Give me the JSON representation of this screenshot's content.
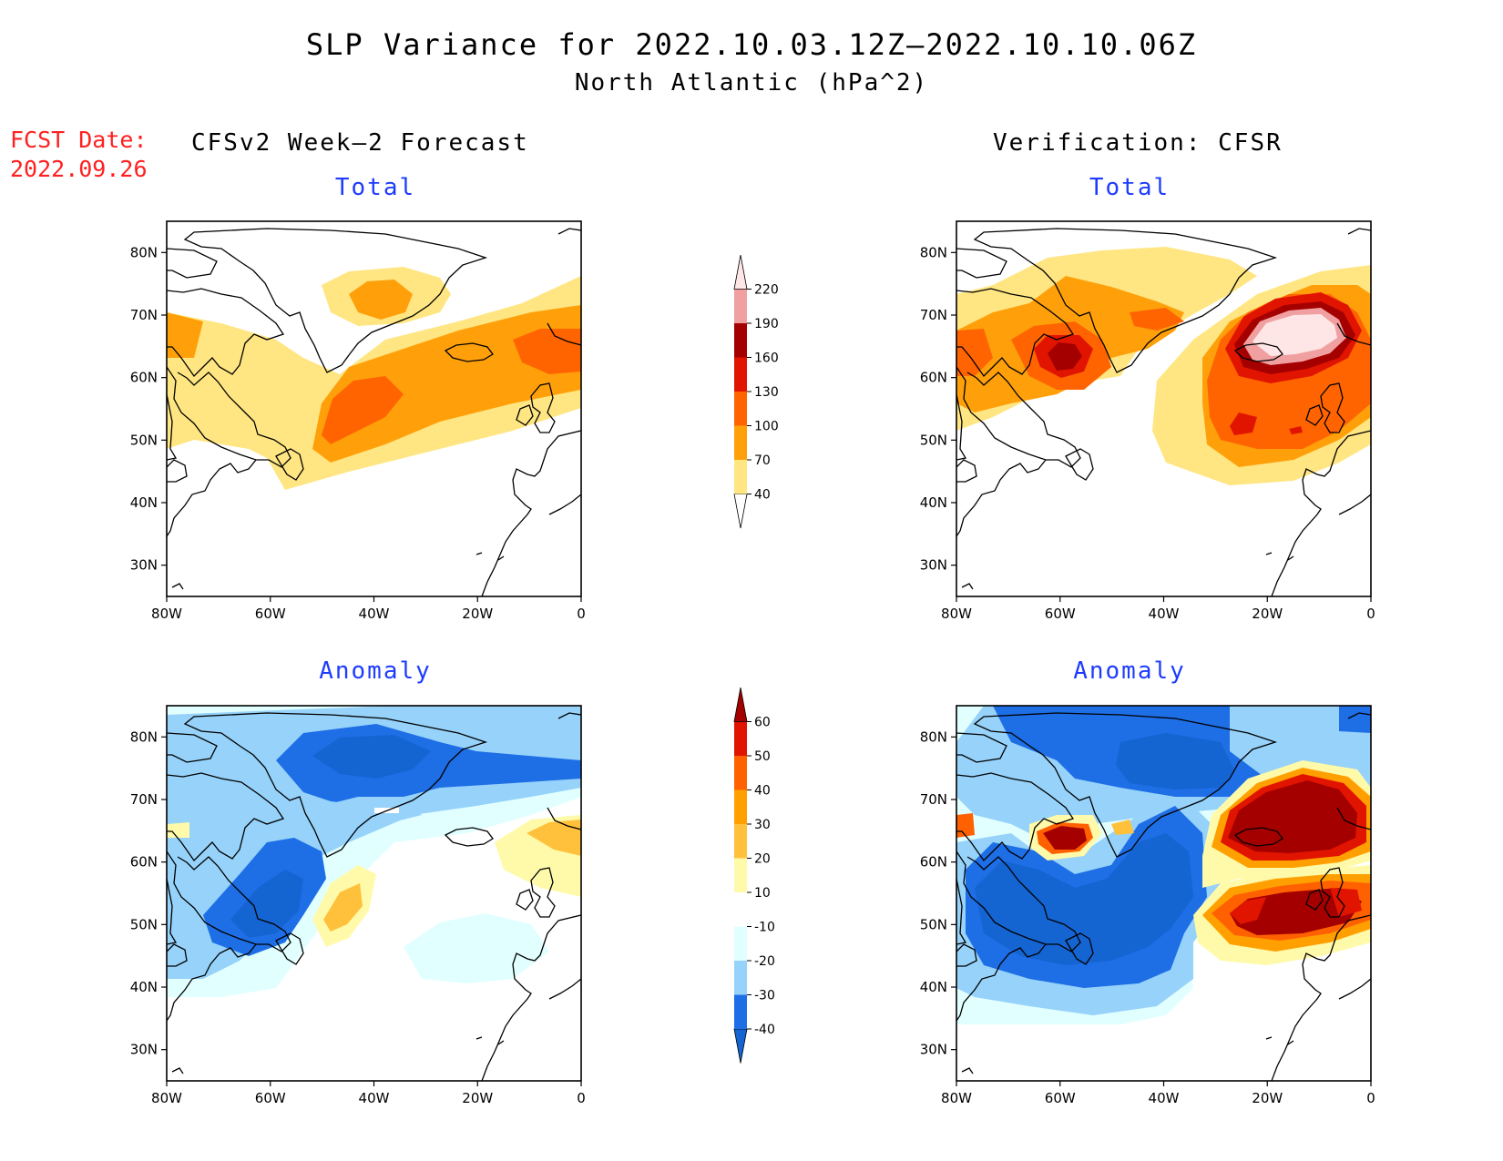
{
  "title_line1": "SLP Variance for 2022.10.03.12Z–2022.10.10.06Z",
  "title_line2": "North Atlantic (hPa^2)",
  "fcst_label": "FCST Date:",
  "fcst_date": "2022.09.26",
  "left_column_title": "CFSv2 Week–2 Forecast",
  "right_column_title": "Verification: CFSR",
  "panels": {
    "fc_total": {
      "subtitle": "Total"
    },
    "vf_total": {
      "subtitle": "Total"
    },
    "fc_anom": {
      "subtitle": "Anomaly"
    },
    "vf_anom": {
      "subtitle": "Anomaly"
    }
  },
  "axes": {
    "lon_ticks": [
      "80W",
      "60W",
      "40W",
      "20W",
      "0"
    ],
    "lat_ticks": [
      "80N",
      "70N",
      "60N",
      "50N",
      "40N",
      "30N"
    ],
    "lon_values": [
      -80,
      -60,
      -40,
      -20,
      0
    ],
    "lat_values": [
      80,
      70,
      60,
      50,
      40,
      30
    ],
    "lon_range": [
      -80,
      0
    ],
    "lat_range": [
      25,
      85
    ]
  },
  "total_colorbar": {
    "levels": [
      "40",
      "70",
      "100",
      "130",
      "160",
      "190",
      "220"
    ],
    "colors": [
      "#ffffff",
      "#ffe682",
      "#ffa00a",
      "#ff6400",
      "#e11400",
      "#a50000",
      "#f0a0a0",
      "#ffe6e6"
    ]
  },
  "anomaly_colorbar": {
    "levels": [
      "-40",
      "-30",
      "-20",
      "-10",
      "10",
      "20",
      "30",
      "40",
      "50",
      "60"
    ],
    "colors": [
      "#1464d2",
      "#1e6ee6",
      "#96d2fa",
      "#e1ffff",
      "#ffffff",
      "#fffaaa",
      "#ffc03c",
      "#ffa000",
      "#ff6000",
      "#e11400",
      "#a50000"
    ]
  }
}
